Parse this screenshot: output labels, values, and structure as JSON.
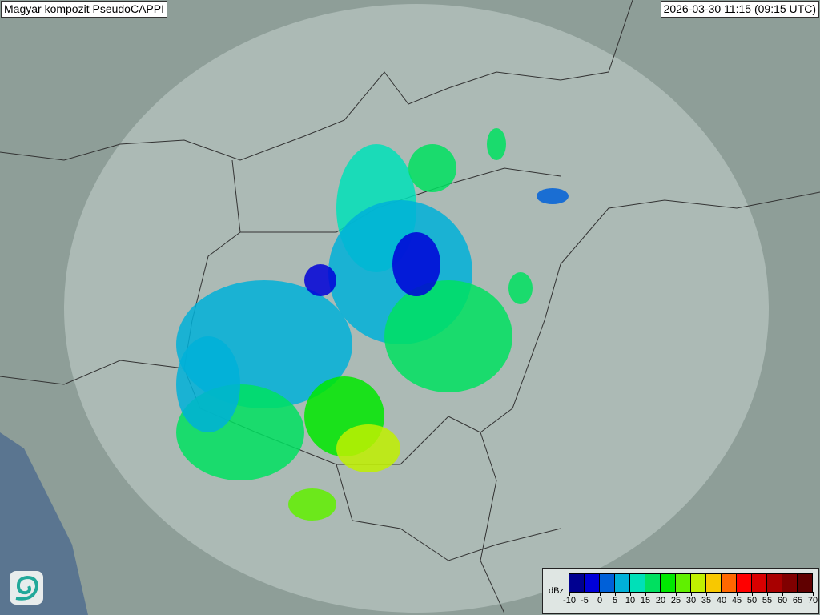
{
  "title": "Magyar kompozit  PseudoCAPPI",
  "timestamp": "2026-03-30 11:15 (09:15 UTC)",
  "legend": {
    "unit": "dBz",
    "ticks": [
      "-10",
      "-5",
      "0",
      "5",
      "10",
      "15",
      "20",
      "25",
      "30",
      "35",
      "40",
      "45",
      "50",
      "55",
      "60",
      "65",
      "70"
    ],
    "colors": [
      "#000090",
      "#0000d8",
      "#0060d8",
      "#00b0d8",
      "#00e0b8",
      "#00e060",
      "#00e800",
      "#60f000",
      "#c0f000",
      "#f8c800",
      "#ff6800",
      "#ff0000",
      "#d80000",
      "#a80000",
      "#800000",
      "#600000"
    ]
  },
  "logo": {
    "icon": "swirl-logo-icon"
  },
  "colors": {
    "land": "#8e9e98",
    "sea": "#5a7590",
    "coverage": "#c9d6d2",
    "border": "#333333"
  }
}
